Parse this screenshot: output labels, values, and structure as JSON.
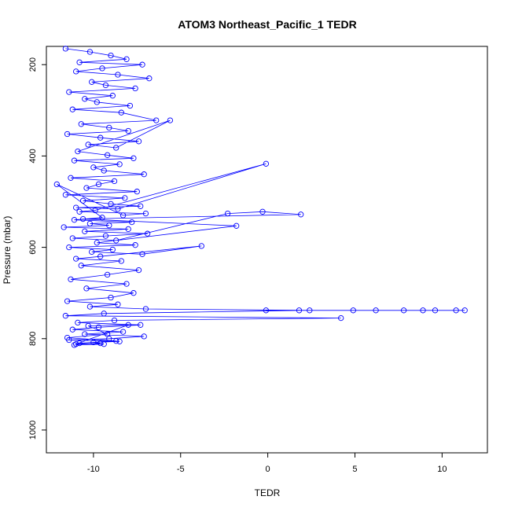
{
  "chart_data": {
    "type": "scatter",
    "title": "ATOM3 Northeast_Pacific_1 TEDR",
    "xlabel": "TEDR",
    "ylabel": "Pressure (mbar)",
    "xlim": [
      -12.7,
      12.6
    ],
    "ylim": [
      1050,
      160
    ],
    "y_inverted": true,
    "x_ticks": [
      -10,
      -5,
      0,
      5,
      10
    ],
    "x_tick_labels": [
      "-10",
      "-5",
      "0",
      "5",
      "10"
    ],
    "y_ticks": [
      200,
      400,
      600,
      800,
      1000
    ],
    "y_tick_labels": [
      "200",
      "400",
      "600",
      "800",
      "1000"
    ],
    "series_color": "#0000ff",
    "marker": "open-circle",
    "connected_by_line": true,
    "grid": false,
    "series": [
      {
        "x": [
          -11.6,
          -10.2,
          -9.0,
          -8.1,
          -10.8,
          -7.2,
          -9.5,
          -11.0,
          -8.6,
          -6.8,
          -10.1,
          -9.3,
          -7.6,
          -11.4,
          -8.9,
          -10.5,
          -9.8,
          -7.9,
          -11.2,
          -8.4,
          -6.4,
          -10.7,
          -9.1,
          -8.0,
          -11.5,
          -9.6,
          -7.4,
          -10.3,
          -8.7,
          -5.6,
          -10.9,
          -9.2,
          -7.7,
          -11.1,
          -8.5,
          -10.0,
          -9.4,
          -7.1,
          -11.3,
          -8.8,
          -9.7,
          -10.4,
          -7.5,
          -11.6,
          -8.2,
          -10.6,
          -9.0,
          -7.3,
          -11.0,
          -8.6,
          -0.1,
          -9.9,
          -10.8,
          -7.0,
          -8.3,
          -12.1,
          -9.5,
          -11.1,
          -7.8,
          -10.2,
          -9.1,
          -11.7,
          -8.0,
          -10.5,
          -6.9,
          -9.3,
          -11.2,
          -8.7,
          -2.3,
          -0.3,
          1.9,
          -10.6,
          -1.8,
          -9.8,
          -7.6,
          -11.4,
          -8.9,
          -10.1,
          -7.2,
          -3.8,
          -9.6,
          -11.0,
          -8.4,
          -10.7,
          -7.4,
          -9.2,
          -11.3,
          -8.1,
          -10.4,
          -7.7,
          -9.0,
          -11.5,
          -8.6,
          -10.2,
          -7.0,
          2.4,
          6.2,
          7.8,
          9.6,
          11.3,
          10.8,
          8.9,
          4.9,
          -0.1,
          1.8,
          -9.4,
          -11.6,
          4.2,
          -8.8,
          -10.9,
          -7.3,
          -9.7,
          -11.2,
          -8.3,
          -10.5,
          -7.1,
          -9.1,
          -11.4,
          -8.5,
          -10.0,
          -9.6,
          -11.0,
          -8.0,
          -10.3,
          -9.2,
          -11.5,
          -8.7,
          -10.8,
          -9.4,
          -11.1
        ],
        "y": [
          165,
          172,
          180,
          188,
          195,
          200,
          208,
          215,
          222,
          230,
          238,
          245,
          252,
          260,
          268,
          275,
          282,
          290,
          298,
          305,
          322,
          330,
          338,
          345,
          352,
          360,
          368,
          375,
          382,
          322,
          390,
          398,
          405,
          410,
          418,
          425,
          432,
          440,
          448,
          455,
          462,
          470,
          478,
          485,
          492,
          498,
          505,
          510,
          513,
          516,
          417,
          519,
          522,
          526,
          530,
          462,
          535,
          540,
          545,
          548,
          552,
          556,
          560,
          565,
          570,
          575,
          580,
          585,
          526,
          522,
          528,
          538,
          553,
          590,
          595,
          600,
          605,
          610,
          615,
          597,
          620,
          625,
          630,
          640,
          650,
          660,
          670,
          680,
          690,
          700,
          710,
          718,
          725,
          730,
          735,
          738,
          738,
          738,
          738,
          738,
          738,
          738,
          738,
          738,
          738,
          745,
          750,
          755,
          760,
          765,
          770,
          775,
          780,
          785,
          790,
          795,
          800,
          803,
          806,
          808,
          810,
          812,
          770,
          772,
          790,
          798,
          805,
          810,
          812,
          814
        ]
      }
    ]
  }
}
